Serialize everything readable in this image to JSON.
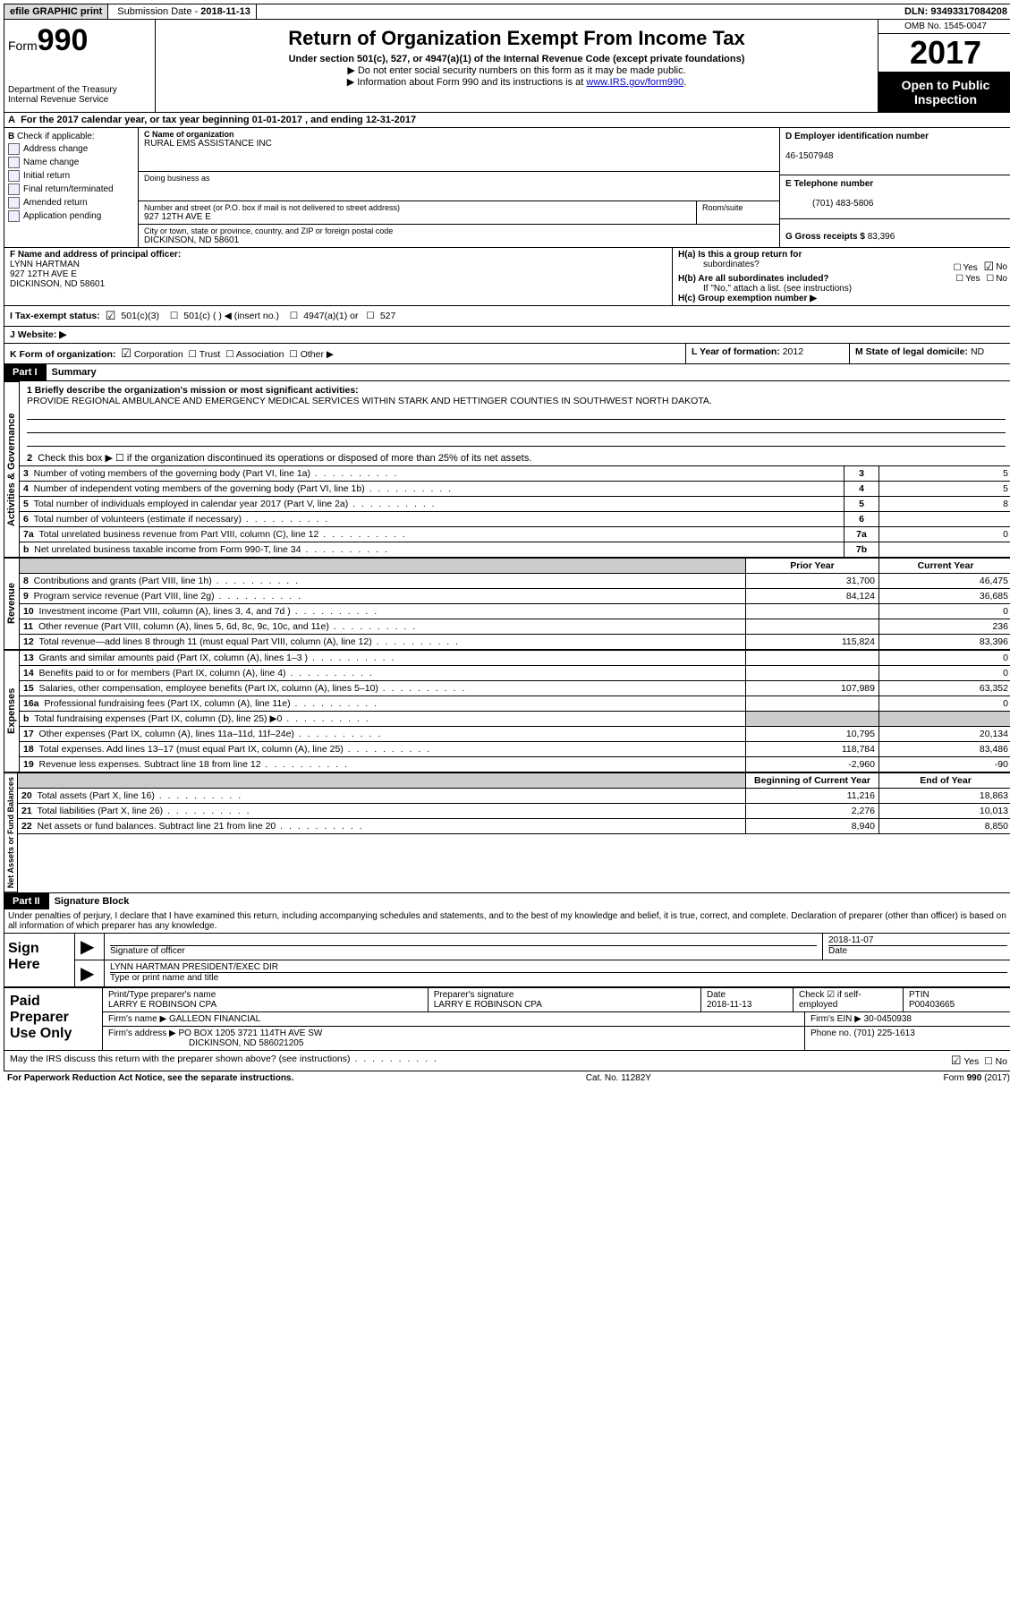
{
  "topbar": {
    "efile": "efile GRAPHIC print",
    "sub_label": "Submission Date - ",
    "sub_date": "2018-11-13",
    "dln_label": "DLN: ",
    "dln": "93493317084208"
  },
  "header": {
    "form_prefix": "Form",
    "form_no": "990",
    "dept1": "Department of the Treasury",
    "dept2": "Internal Revenue Service",
    "title": "Return of Organization Exempt From Income Tax",
    "subtitle": "Under section 501(c), 527, or 4947(a)(1) of the Internal Revenue Code (except private foundations)",
    "note1": "▶ Do not enter social security numbers on this form as it may be made public.",
    "note2_pre": "▶ Information about Form 990 and its instructions is at ",
    "note2_link": "www.IRS.gov/form990",
    "omb": "OMB No. 1545-0047",
    "year": "2017",
    "open1": "Open to Public",
    "open2": "Inspection"
  },
  "line_a": "For the 2017 calendar year, or tax year beginning 01-01-2017   , and ending 12-31-2017",
  "b": {
    "header": "Check if applicable:",
    "opts": [
      "Address change",
      "Name change",
      "Initial return",
      "Final return/terminated",
      "Amended return",
      "Application pending"
    ]
  },
  "c": {
    "name_lbl": "C Name of organization",
    "name": "RURAL EMS ASSISTANCE INC",
    "dba_lbl": "Doing business as",
    "dba": "",
    "addr_lbl": "Number and street (or P.O. box if mail is not delivered to street address)",
    "room_lbl": "Room/suite",
    "addr": "927 12TH AVE E",
    "city_lbl": "City or town, state or province, country, and ZIP or foreign postal code",
    "city": "DICKINSON, ND  58601"
  },
  "d": {
    "lbl": "D Employer identification number",
    "val": "46-1507948"
  },
  "e": {
    "lbl": "E Telephone number",
    "val": "(701) 483-5806"
  },
  "g": {
    "lbl": "G Gross receipts $ ",
    "val": "83,396"
  },
  "f": {
    "lbl": "F  Name and address of principal officer:",
    "name": "LYNN HARTMAN",
    "addr1": "927 12TH AVE E",
    "addr2": "DICKINSON, ND  58601"
  },
  "h": {
    "a_lbl": "H(a)  Is this a group return for",
    "a_lbl2": "subordinates?",
    "b_lbl": "H(b)  Are all subordinates included?",
    "b_note": "If \"No,\" attach a list. (see instructions)",
    "c_lbl": "H(c)  Group exemption number ▶",
    "yes": "Yes",
    "no": "No"
  },
  "i": {
    "lbl": "I  Tax-exempt status:",
    "o1": "501(c)(3)",
    "o2": "501(c) (  ) ◀ (insert no.)",
    "o3": "4947(a)(1) or",
    "o4": "527"
  },
  "j": {
    "lbl": "J  Website: ▶"
  },
  "k": {
    "lbl": "K Form of organization:",
    "corp": "Corporation",
    "trust": "Trust",
    "assoc": "Association",
    "other": "Other ▶"
  },
  "l": {
    "lbl": "L Year of formation: ",
    "val": "2012"
  },
  "m": {
    "lbl": "M State of legal domicile:",
    "val": "ND"
  },
  "part1": {
    "label": "Part I",
    "title": "Summary"
  },
  "mission": {
    "lbl": "1 Briefly describe the organization's mission or most significant activities:",
    "text": "PROVIDE REGIONAL AMBULANCE AND EMERGENCY MEDICAL SERVICES WITHIN STARK AND HETTINGER COUNTIES IN SOUTHWEST NORTH DAKOTA."
  },
  "line2": "Check this box ▶ ☐  if the organization discontinued its operations or disposed of more than 25% of its net assets.",
  "sides": {
    "ag": "Activities & Governance",
    "rev": "Revenue",
    "exp": "Expenses",
    "na": "Net Assets or Fund Balances"
  },
  "ag_rows": [
    {
      "n": "3",
      "t": "Number of voting members of the governing body (Part VI, line 1a)",
      "box": "3",
      "v": "5"
    },
    {
      "n": "4",
      "t": "Number of independent voting members of the governing body (Part VI, line 1b)",
      "box": "4",
      "v": "5"
    },
    {
      "n": "5",
      "t": "Total number of individuals employed in calendar year 2017 (Part V, line 2a)",
      "box": "5",
      "v": "8"
    },
    {
      "n": "6",
      "t": "Total number of volunteers (estimate if necessary)",
      "box": "6",
      "v": ""
    },
    {
      "n": "7a",
      "t": "Total unrelated business revenue from Part VIII, column (C), line 12",
      "box": "7a",
      "v": "0"
    },
    {
      "n": "b",
      "t": "Net unrelated business taxable income from Form 990-T, line 34",
      "box": "7b",
      "v": ""
    }
  ],
  "py_hdr": "Prior Year",
  "cy_hdr": "Current Year",
  "rev_rows": [
    {
      "n": "8",
      "t": "Contributions and grants (Part VIII, line 1h)",
      "py": "31,700",
      "cy": "46,475"
    },
    {
      "n": "9",
      "t": "Program service revenue (Part VIII, line 2g)",
      "py": "84,124",
      "cy": "36,685"
    },
    {
      "n": "10",
      "t": "Investment income (Part VIII, column (A), lines 3, 4, and 7d )",
      "py": "",
      "cy": "0"
    },
    {
      "n": "11",
      "t": "Other revenue (Part VIII, column (A), lines 5, 6d, 8c, 9c, 10c, and 11e)",
      "py": "",
      "cy": "236"
    },
    {
      "n": "12",
      "t": "Total revenue—add lines 8 through 11 (must equal Part VIII, column (A), line 12)",
      "py": "115,824",
      "cy": "83,396"
    }
  ],
  "exp_rows": [
    {
      "n": "13",
      "t": "Grants and similar amounts paid (Part IX, column (A), lines 1–3 )",
      "py": "",
      "cy": "0"
    },
    {
      "n": "14",
      "t": "Benefits paid to or for members (Part IX, column (A), line 4)",
      "py": "",
      "cy": "0"
    },
    {
      "n": "15",
      "t": "Salaries, other compensation, employee benefits (Part IX, column (A), lines 5–10)",
      "py": "107,989",
      "cy": "63,352"
    },
    {
      "n": "16a",
      "t": "Professional fundraising fees (Part IX, column (A), line 11e)",
      "py": "",
      "cy": "0"
    },
    {
      "n": "b",
      "t": "Total fundraising expenses (Part IX, column (D), line 25) ▶0",
      "py": "SHADE",
      "cy": "SHADE"
    },
    {
      "n": "17",
      "t": "Other expenses (Part IX, column (A), lines 11a–11d, 11f–24e)",
      "py": "10,795",
      "cy": "20,134"
    },
    {
      "n": "18",
      "t": "Total expenses. Add lines 13–17 (must equal Part IX, column (A), line 25)",
      "py": "118,784",
      "cy": "83,486"
    },
    {
      "n": "19",
      "t": "Revenue less expenses. Subtract line 18 from line 12",
      "py": "-2,960",
      "cy": "-90"
    }
  ],
  "by_hdr": "Beginning of Current Year",
  "ey_hdr": "End of Year",
  "na_rows": [
    {
      "n": "20",
      "t": "Total assets (Part X, line 16)",
      "py": "11,216",
      "cy": "18,863"
    },
    {
      "n": "21",
      "t": "Total liabilities (Part X, line 26)",
      "py": "2,276",
      "cy": "10,013"
    },
    {
      "n": "22",
      "t": "Net assets or fund balances. Subtract line 21 from line 20",
      "py": "8,940",
      "cy": "8,850"
    }
  ],
  "part2": {
    "label": "Part II",
    "title": "Signature Block"
  },
  "penalty": "Under penalties of perjury, I declare that I have examined this return, including accompanying schedules and statements, and to the best of my knowledge and belief, it is true, correct, and complete. Declaration of preparer (other than officer) is based on all information of which preparer has any knowledge.",
  "sign": {
    "here": "Sign Here",
    "sig_lbl": "Signature of officer",
    "date_lbl": "Date",
    "date": "2018-11-07",
    "name": "LYNN HARTMAN PRESIDENT/EXEC DIR",
    "name_lbl": "Type or print name and title"
  },
  "prep": {
    "lbl": "Paid Preparer Use Only",
    "pt_name_lbl": "Print/Type preparer's name",
    "pt_name": "LARRY E ROBINSON CPA",
    "sig_lbl": "Preparer's signature",
    "sig": "LARRY E ROBINSON CPA",
    "date_lbl": "Date",
    "date": "2018-11-13",
    "check_lbl": "Check ☑ if self-employed",
    "ptin_lbl": "PTIN",
    "ptin": "P00403665",
    "firm_name_lbl": "Firm's name    ▶ ",
    "firm_name": "GALLEON FINANCIAL",
    "firm_ein_lbl": "Firm's EIN ▶ ",
    "firm_ein": "30-0450938",
    "firm_addr_lbl": "Firm's address ▶ ",
    "firm_addr": "PO BOX 1205 3721 114TH AVE SW",
    "firm_city": "DICKINSON, ND  586021205",
    "phone_lbl": "Phone no. ",
    "phone": "(701) 225-1613"
  },
  "discuss": {
    "q": "May the IRS discuss this return with the preparer shown above? (see instructions)",
    "yes": "Yes",
    "no": "No"
  },
  "footer": {
    "pra": "For Paperwork Reduction Act Notice, see the separate instructions.",
    "cat": "Cat. No. 11282Y",
    "form": "Form 990 (2017)"
  }
}
